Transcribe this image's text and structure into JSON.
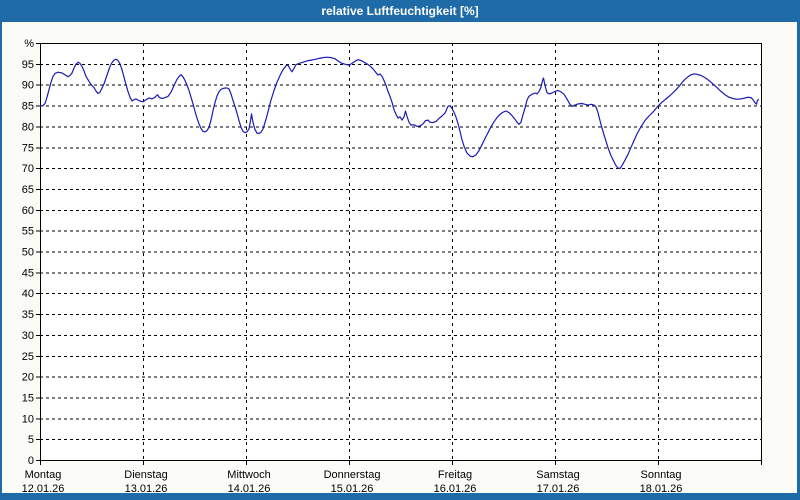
{
  "window": {
    "title": "relative Luftfeuchtigkeit [%]"
  },
  "colors": {
    "titlebar": "#1e6ba8",
    "window_border": "#1e6ba8",
    "page_bg": "#fbfbf7",
    "plot_bg": "#ffffff",
    "grid": "#000000",
    "axis": "#000000",
    "label_text": "#000000",
    "title_text": "#ffffff",
    "line": "#1b1bb3"
  },
  "chart_data": {
    "type": "line",
    "title": "relative Luftfeuchtigkeit [%]",
    "unit": "%",
    "ylabel": "%",
    "ylim": [
      0,
      100
    ],
    "ytick_step": 5,
    "grid": "dashed",
    "legend": "none",
    "x_axis": {
      "span_days": 7,
      "days": [
        {
          "label": "Montag",
          "date": "12.01.26"
        },
        {
          "label": "Dienstag",
          "date": "13.01.26"
        },
        {
          "label": "Mittwoch",
          "date": "14.01.26"
        },
        {
          "label": "Donnerstag",
          "date": "15.01.26"
        },
        {
          "label": "Freitag",
          "date": "16.01.26"
        },
        {
          "label": "Samstag",
          "date": "17.01.26"
        },
        {
          "label": "Sonntag",
          "date": "18.01.26"
        }
      ]
    },
    "series": [
      {
        "name": "relative-luftfeuchtigkeit",
        "color": "#1b1bb3",
        "points": [
          [
            0,
            84.9
          ],
          [
            0.029,
            85.0
          ],
          [
            0.049,
            85.5
          ],
          [
            0.068,
            87.0
          ],
          [
            0.087,
            88.8
          ],
          [
            0.107,
            90.6
          ],
          [
            0.126,
            92.0
          ],
          [
            0.146,
            92.7
          ],
          [
            0.175,
            93.0
          ],
          [
            0.214,
            92.8
          ],
          [
            0.243,
            92.4
          ],
          [
            0.272,
            91.9
          ],
          [
            0.291,
            92.2
          ],
          [
            0.311,
            92.8
          ],
          [
            0.33,
            94.0
          ],
          [
            0.35,
            94.9
          ],
          [
            0.369,
            95.4
          ],
          [
            0.388,
            95.1
          ],
          [
            0.408,
            94.4
          ],
          [
            0.427,
            93.3
          ],
          [
            0.447,
            92.0
          ],
          [
            0.466,
            91.2
          ],
          [
            0.485,
            90.4
          ],
          [
            0.505,
            89.8
          ],
          [
            0.524,
            89.3
          ],
          [
            0.544,
            88.5
          ],
          [
            0.563,
            87.9
          ],
          [
            0.583,
            88.2
          ],
          [
            0.602,
            89.2
          ],
          [
            0.621,
            90.2
          ],
          [
            0.641,
            91.6
          ],
          [
            0.66,
            93.0
          ],
          [
            0.68,
            94.4
          ],
          [
            0.699,
            95.3
          ],
          [
            0.718,
            95.9
          ],
          [
            0.738,
            96.1
          ],
          [
            0.757,
            95.8
          ],
          [
            0.777,
            95.0
          ],
          [
            0.796,
            93.6
          ],
          [
            0.816,
            91.8
          ],
          [
            0.835,
            90.0
          ],
          [
            0.854,
            88.4
          ],
          [
            0.874,
            87.0
          ],
          [
            0.893,
            86.1
          ],
          [
            0.913,
            86.4
          ],
          [
            0.932,
            86.6
          ],
          [
            0.951,
            86.3
          ],
          [
            0.971,
            86.1
          ],
          [
            1,
            85.9
          ],
          [
            1.029,
            86.4
          ],
          [
            1.058,
            86.8
          ],
          [
            1.087,
            86.6
          ],
          [
            1.117,
            87.0
          ],
          [
            1.141,
            87.6
          ],
          [
            1.16,
            86.9
          ],
          [
            1.184,
            86.7
          ],
          [
            1.214,
            86.9
          ],
          [
            1.243,
            87.2
          ],
          [
            1.272,
            88.2
          ],
          [
            1.301,
            89.8
          ],
          [
            1.33,
            91.3
          ],
          [
            1.354,
            92.1
          ],
          [
            1.369,
            92.4
          ],
          [
            1.388,
            91.9
          ],
          [
            1.408,
            91.0
          ],
          [
            1.427,
            89.9
          ],
          [
            1.447,
            88.6
          ],
          [
            1.466,
            87.0
          ],
          [
            1.485,
            85.4
          ],
          [
            1.505,
            83.6
          ],
          [
            1.524,
            82.0
          ],
          [
            1.544,
            80.6
          ],
          [
            1.563,
            79.5
          ],
          [
            1.583,
            78.8
          ],
          [
            1.602,
            78.7
          ],
          [
            1.621,
            79.0
          ],
          [
            1.641,
            79.8
          ],
          [
            1.66,
            81.5
          ],
          [
            1.68,
            83.8
          ],
          [
            1.699,
            85.7
          ],
          [
            1.718,
            87.3
          ],
          [
            1.738,
            88.3
          ],
          [
            1.757,
            88.9
          ],
          [
            1.777,
            89.1
          ],
          [
            1.796,
            89.2
          ],
          [
            1.816,
            89.2
          ],
          [
            1.835,
            89.0
          ],
          [
            1.854,
            87.8
          ],
          [
            1.874,
            86.2
          ],
          [
            1.893,
            84.8
          ],
          [
            1.913,
            83.2
          ],
          [
            1.932,
            81.4
          ],
          [
            1.951,
            79.8
          ],
          [
            1.971,
            78.8
          ],
          [
            1.99,
            78.5
          ],
          [
            2.01,
            78.7
          ],
          [
            2.029,
            79.4
          ],
          [
            2.044,
            81.3
          ],
          [
            2.053,
            83.0
          ],
          [
            2.068,
            81.0
          ],
          [
            2.087,
            79.2
          ],
          [
            2.107,
            78.4
          ],
          [
            2.126,
            78.3
          ],
          [
            2.146,
            78.6
          ],
          [
            2.165,
            79.4
          ],
          [
            2.184,
            80.9
          ],
          [
            2.204,
            82.6
          ],
          [
            2.223,
            84.5
          ],
          [
            2.243,
            86.3
          ],
          [
            2.272,
            88.6
          ],
          [
            2.301,
            90.6
          ],
          [
            2.33,
            92.2
          ],
          [
            2.359,
            93.6
          ],
          [
            2.388,
            94.5
          ],
          [
            2.408,
            94.7
          ],
          [
            2.427,
            93.8
          ],
          [
            2.447,
            93.1
          ],
          [
            2.466,
            93.9
          ],
          [
            2.485,
            94.8
          ],
          [
            2.515,
            95.1
          ],
          [
            2.553,
            95.4
          ],
          [
            2.592,
            95.7
          ],
          [
            2.631,
            95.9
          ],
          [
            2.67,
            96.1
          ],
          [
            2.709,
            96.3
          ],
          [
            2.748,
            96.5
          ],
          [
            2.786,
            96.6
          ],
          [
            2.825,
            96.5
          ],
          [
            2.864,
            96.2
          ],
          [
            2.893,
            95.7
          ],
          [
            2.922,
            95.2
          ],
          [
            2.951,
            95.0
          ],
          [
            2.981,
            94.8
          ],
          [
            3,
            94.7
          ],
          [
            3.029,
            95.1
          ],
          [
            3.058,
            95.6
          ],
          [
            3.087,
            96.0
          ],
          [
            3.117,
            95.8
          ],
          [
            3.146,
            95.4
          ],
          [
            3.175,
            95.0
          ],
          [
            3.204,
            94.5
          ],
          [
            3.233,
            93.8
          ],
          [
            3.262,
            92.9
          ],
          [
            3.282,
            92.3
          ],
          [
            3.301,
            92.6
          ],
          [
            3.32,
            92.0
          ],
          [
            3.34,
            91.0
          ],
          [
            3.359,
            89.8
          ],
          [
            3.379,
            88.4
          ],
          [
            3.398,
            87.2
          ],
          [
            3.417,
            85.8
          ],
          [
            3.437,
            84.0
          ],
          [
            3.456,
            82.9
          ],
          [
            3.476,
            82.0
          ],
          [
            3.495,
            82.3
          ],
          [
            3.515,
            81.5
          ],
          [
            3.534,
            82.3
          ],
          [
            3.549,
            83.7
          ],
          [
            3.563,
            82.4
          ],
          [
            3.583,
            81.0
          ],
          [
            3.602,
            80.3
          ],
          [
            3.631,
            80.4
          ],
          [
            3.66,
            80.0
          ],
          [
            3.689,
            80.1
          ],
          [
            3.718,
            80.6
          ],
          [
            3.743,
            81.4
          ],
          [
            3.767,
            81.5
          ],
          [
            3.786,
            81.0
          ],
          [
            3.816,
            80.9
          ],
          [
            3.845,
            81.2
          ],
          [
            3.874,
            81.9
          ],
          [
            3.903,
            82.5
          ],
          [
            3.932,
            83.2
          ],
          [
            3.961,
            84.8
          ],
          [
            3.981,
            85.0
          ],
          [
            4,
            84.3
          ],
          [
            4.019,
            83.4
          ],
          [
            4.039,
            82.2
          ],
          [
            4.058,
            80.7
          ],
          [
            4.078,
            78.8
          ],
          [
            4.097,
            76.8
          ],
          [
            4.117,
            75.2
          ],
          [
            4.146,
            73.6
          ],
          [
            4.175,
            72.9
          ],
          [
            4.204,
            72.7
          ],
          [
            4.233,
            73.2
          ],
          [
            4.262,
            74.2
          ],
          [
            4.291,
            75.6
          ],
          [
            4.32,
            77.1
          ],
          [
            4.35,
            78.5
          ],
          [
            4.379,
            79.9
          ],
          [
            4.408,
            81.1
          ],
          [
            4.437,
            82.1
          ],
          [
            4.466,
            82.9
          ],
          [
            4.495,
            83.4
          ],
          [
            4.524,
            83.7
          ],
          [
            4.553,
            83.3
          ],
          [
            4.583,
            82.6
          ],
          [
            4.612,
            81.7
          ],
          [
            4.631,
            81.0
          ],
          [
            4.65,
            80.5
          ],
          [
            4.67,
            81.0
          ],
          [
            4.689,
            82.8
          ],
          [
            4.709,
            84.4
          ],
          [
            4.728,
            86.3
          ],
          [
            4.747,
            87.2
          ],
          [
            4.777,
            87.7
          ],
          [
            4.806,
            88.0
          ],
          [
            4.825,
            87.8
          ],
          [
            4.845,
            88.4
          ],
          [
            4.864,
            89.4
          ],
          [
            4.879,
            91.0
          ],
          [
            4.888,
            91.6
          ],
          [
            4.903,
            89.8
          ],
          [
            4.922,
            88.1
          ],
          [
            4.942,
            87.8
          ],
          [
            4.971,
            88.0
          ],
          [
            5,
            88.4
          ],
          [
            5.029,
            88.6
          ],
          [
            5.058,
            88.3
          ],
          [
            5.087,
            87.7
          ],
          [
            5.117,
            86.5
          ],
          [
            5.146,
            85.3
          ],
          [
            5.165,
            84.8
          ],
          [
            5.194,
            85.1
          ],
          [
            5.223,
            85.4
          ],
          [
            5.262,
            85.5
          ],
          [
            5.291,
            85.3
          ],
          [
            5.32,
            85.1
          ],
          [
            5.35,
            85.3
          ],
          [
            5.379,
            85.1
          ],
          [
            5.398,
            84.7
          ],
          [
            5.417,
            83.3
          ],
          [
            5.437,
            81.4
          ],
          [
            5.456,
            79.6
          ],
          [
            5.485,
            77.2
          ],
          [
            5.515,
            74.9
          ],
          [
            5.544,
            73.0
          ],
          [
            5.573,
            71.5
          ],
          [
            5.592,
            70.6
          ],
          [
            5.612,
            70.0
          ],
          [
            5.631,
            69.9
          ],
          [
            5.65,
            70.6
          ],
          [
            5.68,
            71.9
          ],
          [
            5.709,
            73.3
          ],
          [
            5.738,
            75.0
          ],
          [
            5.767,
            76.6
          ],
          [
            5.796,
            78.2
          ],
          [
            5.825,
            79.5
          ],
          [
            5.854,
            80.7
          ],
          [
            5.883,
            81.7
          ],
          [
            5.913,
            82.5
          ],
          [
            5.942,
            83.2
          ],
          [
            5.971,
            84.0
          ],
          [
            5.99,
            84.6
          ],
          [
            6.01,
            85.1
          ],
          [
            6.039,
            85.8
          ],
          [
            6.078,
            86.6
          ],
          [
            6.117,
            87.4
          ],
          [
            6.155,
            88.3
          ],
          [
            6.194,
            89.3
          ],
          [
            6.233,
            90.5
          ],
          [
            6.262,
            91.3
          ],
          [
            6.291,
            91.9
          ],
          [
            6.32,
            92.4
          ],
          [
            6.35,
            92.6
          ],
          [
            6.379,
            92.5
          ],
          [
            6.417,
            92.2
          ],
          [
            6.456,
            91.7
          ],
          [
            6.495,
            91.0
          ],
          [
            6.534,
            90.2
          ],
          [
            6.573,
            89.3
          ],
          [
            6.612,
            88.4
          ],
          [
            6.65,
            87.6
          ],
          [
            6.689,
            87.0
          ],
          [
            6.728,
            86.7
          ],
          [
            6.767,
            86.5
          ],
          [
            6.806,
            86.6
          ],
          [
            6.845,
            86.8
          ],
          [
            6.874,
            87.0
          ],
          [
            6.903,
            86.9
          ],
          [
            6.922,
            86.4
          ],
          [
            6.942,
            85.7
          ],
          [
            6.956,
            85.3
          ],
          [
            6.966,
            86.3
          ],
          [
            6.976,
            86.4
          ]
        ]
      }
    ]
  }
}
